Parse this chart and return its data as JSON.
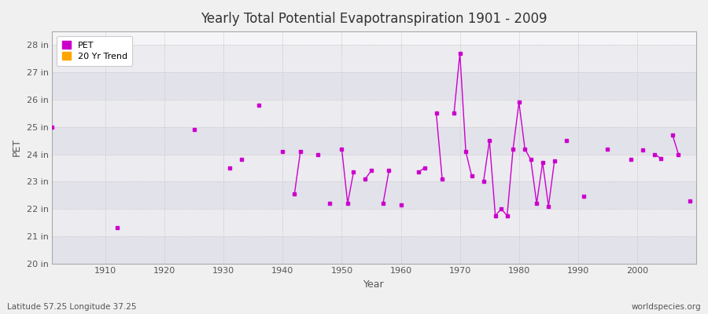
{
  "title": "Yearly Total Potential Evapotranspiration 1901 - 2009",
  "xlabel": "Year",
  "ylabel": "PET",
  "footnote_left": "Latitude 57.25 Longitude 37.25",
  "footnote_right": "worldspecies.org",
  "ylim": [
    20,
    28.5
  ],
  "ytick_labels": [
    "20 in",
    "21 in",
    "22 in",
    "23 in",
    "24 in",
    "25 in",
    "26 in",
    "27 in",
    "28 in"
  ],
  "ytick_values": [
    20,
    21,
    22,
    23,
    24,
    25,
    26,
    27,
    28
  ],
  "xtick_values": [
    1910,
    1920,
    1930,
    1940,
    1950,
    1960,
    1970,
    1980,
    1990,
    2000
  ],
  "pet_color": "#cc00cc",
  "trend_color": "#ffa500",
  "bg_color": "#f0f0f0",
  "plot_bg_color": "#f5f5f8",
  "band_color_light": "#ebebf0",
  "band_color_dark": "#e2e2ea",
  "grid_color": "#cccccc",
  "xlim": [
    1901,
    2010
  ],
  "data": {
    "1901": 25.0,
    "1912": 21.3,
    "1925": 24.9,
    "1931": 23.5,
    "1933": 23.8,
    "1936": 25.8,
    "1940": 24.1,
    "1942": 22.55,
    "1943": 24.1,
    "1946": 24.0,
    "1948": 22.2,
    "1950": 24.2,
    "1951": 22.2,
    "1952": 23.35,
    "1954": 23.1,
    "1955": 23.4,
    "1957": 22.2,
    "1958": 23.4,
    "1960": 22.15,
    "1963": 23.35,
    "1964": 23.5,
    "1966": 25.5,
    "1967": 23.1,
    "1969": 25.5,
    "1970": 27.7,
    "1971": 24.1,
    "1972": 23.2,
    "1974": 23.0,
    "1975": 24.5,
    "1976": 21.75,
    "1977": 22.0,
    "1978": 21.75,
    "1979": 24.2,
    "1980": 25.9,
    "1981": 24.2,
    "1982": 23.8,
    "1983": 22.2,
    "1984": 23.7,
    "1985": 22.1,
    "1986": 23.75,
    "1988": 24.5,
    "1991": 22.45,
    "1995": 24.2,
    "1999": 23.8,
    "2001": 24.15,
    "2003": 24.0,
    "2004": 23.85,
    "2006": 24.7,
    "2007": 24.0,
    "2009": 22.3
  }
}
